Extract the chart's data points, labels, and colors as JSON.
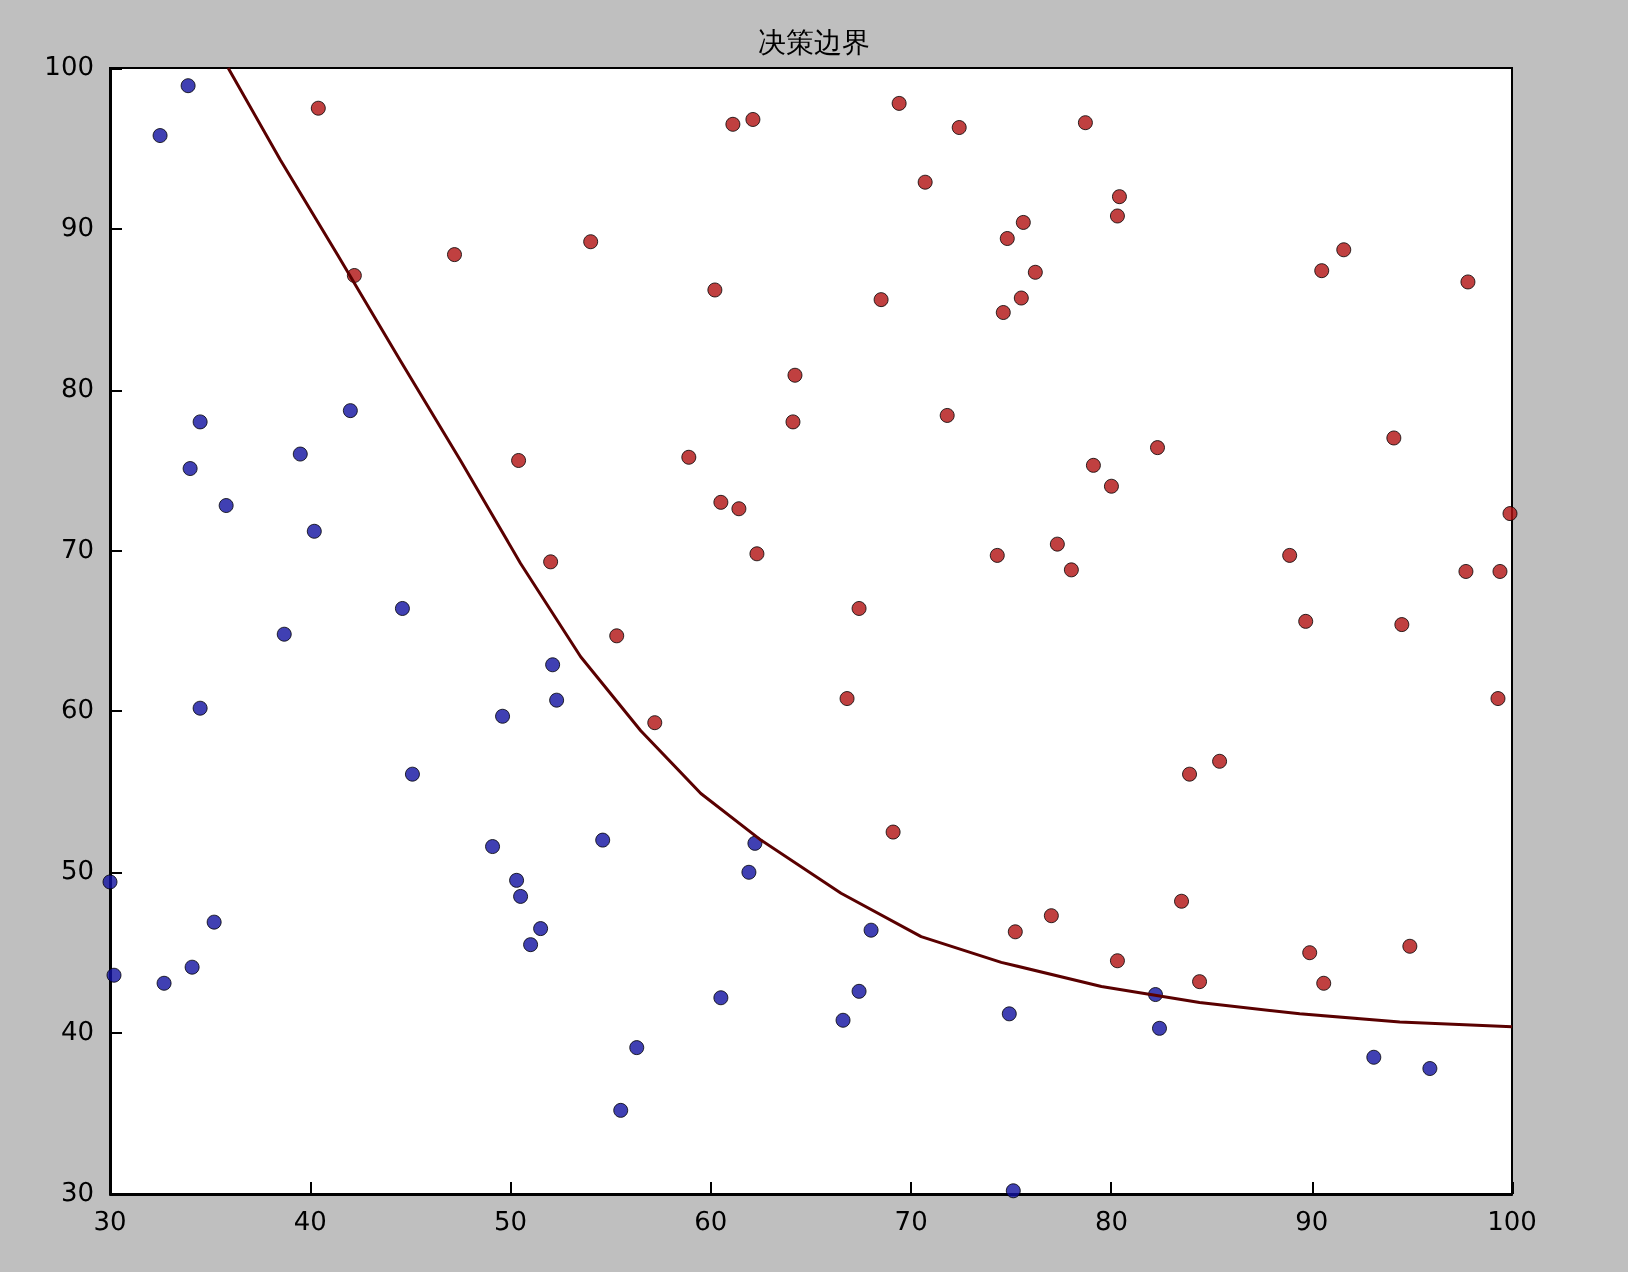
{
  "chart_data": {
    "type": "scatter",
    "title": "决策边界",
    "xlim": [
      30,
      100
    ],
    "ylim": [
      30,
      100
    ],
    "xticks": [
      30,
      40,
      50,
      60,
      70,
      80,
      90,
      100
    ],
    "yticks": [
      30,
      40,
      50,
      60,
      70,
      80,
      90,
      100
    ],
    "grid": false,
    "marker": "circle",
    "series": [
      {
        "color": "#1010a0",
        "x": [
          30.0,
          30.2,
          32.7,
          32.5,
          33.9,
          34.0,
          34.1,
          34.5,
          34.5,
          35.2,
          35.8,
          38.7,
          39.5,
          40.2,
          42.0,
          44.6,
          45.1,
          49.1,
          49.6,
          50.3,
          50.5,
          51.0,
          51.5,
          52.1,
          52.3,
          54.6,
          56.3,
          55.5,
          60.5,
          61.9,
          62.2,
          66.6,
          67.4,
          68.0,
          74.9,
          75.1,
          82.2,
          82.4,
          93.1,
          95.9
        ],
        "values": [
          49.4,
          43.6,
          43.1,
          95.8,
          98.9,
          75.1,
          44.1,
          78.0,
          60.2,
          46.9,
          72.8,
          64.8,
          76.0,
          71.2,
          78.7,
          66.4,
          56.1,
          51.6,
          59.7,
          49.5,
          48.5,
          45.5,
          46.5,
          62.9,
          60.7,
          52.0,
          39.1,
          35.2,
          42.2,
          50.0,
          51.8,
          40.8,
          42.6,
          46.4,
          41.2,
          30.2,
          42.4,
          40.3,
          38.5,
          37.8
        ]
      },
      {
        "color": "#b01010",
        "x": [
          40.4,
          42.2,
          47.2,
          50.4,
          52.0,
          54.0,
          55.3,
          57.2,
          58.9,
          60.2,
          60.5,
          61.1,
          61.4,
          62.1,
          62.3,
          64.1,
          64.2,
          67.4,
          66.8,
          68.5,
          69.1,
          69.4,
          70.7,
          71.8,
          72.4,
          74.3,
          74.6,
          74.8,
          75.2,
          75.5,
          75.6,
          76.2,
          77.0,
          77.3,
          78.0,
          78.7,
          79.1,
          80.0,
          80.3,
          80.4,
          80.3,
          82.3,
          83.5,
          83.9,
          84.4,
          85.4,
          88.9,
          89.7,
          89.9,
          90.5,
          90.6,
          91.6,
          94.1,
          94.5,
          94.9,
          97.8,
          97.7,
          99.4,
          99.3,
          99.9
        ],
        "values": [
          97.5,
          87.1,
          88.4,
          75.6,
          69.3,
          89.2,
          64.7,
          59.3,
          75.8,
          86.2,
          73.0,
          96.5,
          72.6,
          96.8,
          69.8,
          78.0,
          80.9,
          66.4,
          60.8,
          85.6,
          52.5,
          97.8,
          92.9,
          78.4,
          96.3,
          69.7,
          84.8,
          89.4,
          46.3,
          85.7,
          90.4,
          87.3,
          47.3,
          70.4,
          68.8,
          96.6,
          75.3,
          74.0,
          90.8,
          92.0,
          44.5,
          76.4,
          48.2,
          56.1,
          43.2,
          56.9,
          69.7,
          65.6,
          45.0,
          87.4,
          43.1,
          88.7,
          77.0,
          65.4,
          45.4,
          86.7,
          68.7,
          68.7,
          60.8,
          72.3
        ]
      },
      {
        "type": "line",
        "marker": "none",
        "color": "#5a0000",
        "x": [
          35.9,
          38.5,
          41.5,
          44.5,
          47.5,
          50.5,
          53.5,
          56.5,
          59.5,
          62.5,
          66.5,
          70.5,
          74.5,
          79.5,
          84.4,
          89.4,
          94.4,
          100
        ],
        "values": [
          100,
          94.3,
          88.1,
          81.8,
          75.6,
          69.2,
          63.4,
          58.8,
          54.9,
          52.0,
          48.7,
          46.0,
          44.4,
          42.9,
          41.9,
          41.2,
          40.7,
          40.4
        ]
      }
    ]
  }
}
